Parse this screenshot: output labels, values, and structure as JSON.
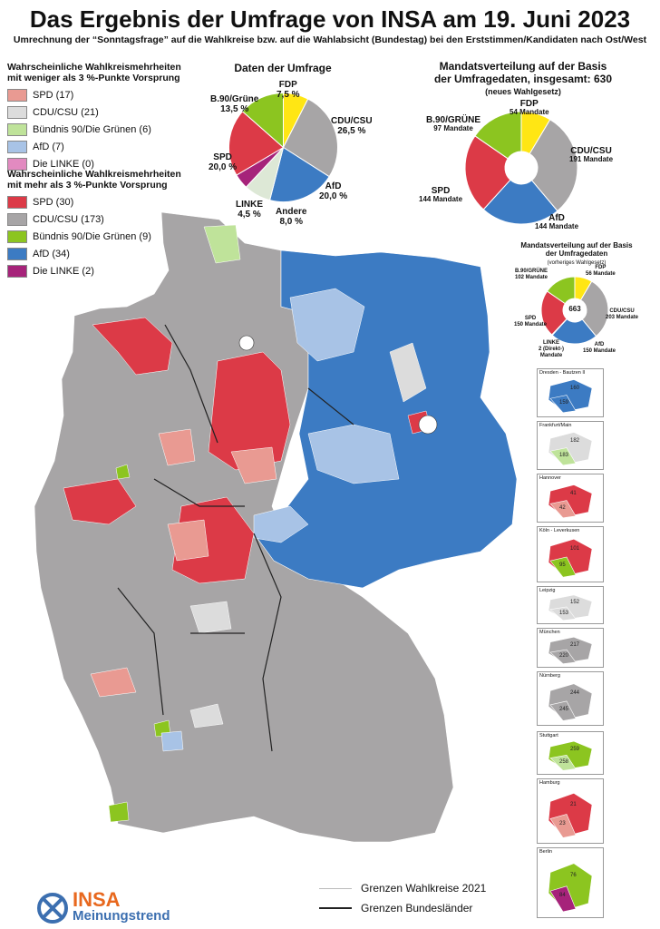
{
  "title": "Das Ergebnis der Umfrage von INSA am 19. Juni 2023",
  "subtitle": "Umrechnung der “Sonntagsfrage” auf die Wahlkreise bzw. auf die Wahlabsicht (Bundestag) bei den Erststimmen/Kandidaten nach Ost/West",
  "colors": {
    "spd": "#dc3a47",
    "spd_light": "#e99a92",
    "cdu": "#a7a5a6",
    "cdu_light": "#dcdcdc",
    "gruene": "#8cc520",
    "gruene_light": "#bfe39a",
    "afd": "#3c7bc3",
    "afd_light": "#a8c3e6",
    "linke": "#a6237a",
    "linke_light": "#e28ac0",
    "fdp": "#ffe614",
    "andere": "#dde8d6"
  },
  "legend": {
    "weak_heading": "Wahrscheinliche Wahlkreismehrheiten mit weniger als 3 %-Punkte Vorsprung",
    "weak": [
      {
        "label": "SPD (17)",
        "color": "#e99a92"
      },
      {
        "label": "CDU/CSU (21)",
        "color": "#dcdcdc"
      },
      {
        "label": "Bündnis 90/Die Grünen (6)",
        "color": "#bfe39a"
      },
      {
        "label": "AfD (7)",
        "color": "#a8c3e6"
      },
      {
        "label": "Die LINKE (0)",
        "color": "#e28ac0"
      }
    ],
    "strong_heading": "Wahrscheinliche Wahlkreismehrheiten mit mehr als 3 %-Punkte Vorsprung",
    "strong": [
      {
        "label": "SPD (30)",
        "color": "#dc3a47"
      },
      {
        "label": "CDU/CSU (173)",
        "color": "#a7a5a6"
      },
      {
        "label": "Bündnis 90/Die Grünen (9)",
        "color": "#8cc520"
      },
      {
        "label": "AfD (34)",
        "color": "#3c7bc3"
      },
      {
        "label": "Die LINKE (2)",
        "color": "#a6237a"
      }
    ]
  },
  "survey": {
    "title": "Daten der Umfrage",
    "slices": [
      {
        "party": "FDP",
        "value": 7.5,
        "value_label": "7,5 %",
        "color": "#ffe614"
      },
      {
        "party": "CDU/CSU",
        "value": 26.5,
        "value_label": "26,5 %",
        "color": "#a7a5a6"
      },
      {
        "party": "AfD",
        "value": 20.0,
        "value_label": "20,0 %",
        "color": "#3c7bc3"
      },
      {
        "party": "Andere",
        "value": 8.0,
        "value_label": "8,0 %",
        "color": "#dde8d6"
      },
      {
        "party": "LINKE",
        "value": 4.5,
        "value_label": "4,5 %",
        "color": "#a6237a"
      },
      {
        "party": "SPD",
        "value": 20.0,
        "value_label": "20,0 %",
        "color": "#dc3a47"
      },
      {
        "party": "B.90/Grüne",
        "value": 13.5,
        "value_label": "13,5 %",
        "color": "#8cc520"
      }
    ]
  },
  "seats_new": {
    "title_line1": "Mandatsverteilung auf der Basis",
    "title_line2": "der Umfragedaten, insgesamt: 630",
    "note": "(neues Wahlgesetz)",
    "slices": [
      {
        "party": "FDP",
        "value": 54,
        "label": "54 Mandate",
        "color": "#ffe614"
      },
      {
        "party": "CDU/CSU",
        "value": 191,
        "label": "191 Mandate",
        "color": "#a7a5a6"
      },
      {
        "party": "AfD",
        "value": 144,
        "label": "144 Mandate",
        "color": "#3c7bc3"
      },
      {
        "party": "SPD",
        "value": 144,
        "label": "144 Mandate",
        "color": "#dc3a47"
      },
      {
        "party": "B.90/GRÜNE",
        "value": 97,
        "label": "97 Mandate",
        "color": "#8cc520"
      }
    ]
  },
  "seats_old": {
    "title_line1": "Mandatsverteilung auf der Basis",
    "title_line2": "der Umfragedaten",
    "note": "(vorheriges Wahlgesetz)",
    "total": "663",
    "linke_label": "LINKE",
    "linke_note": "2 (Direkt-)",
    "linke_unit": "Mandate",
    "slices": [
      {
        "party": "FDP",
        "value": 56,
        "label": "56 Mandate",
        "color": "#ffe614"
      },
      {
        "party": "CDU/CSU",
        "value": 203,
        "label": "203 Mandate",
        "color": "#a7a5a6"
      },
      {
        "party": "AfD",
        "value": 150,
        "label": "150 Mandate",
        "color": "#3c7bc3"
      },
      {
        "party": "LINKE",
        "value": 2,
        "label": "2 Mandate",
        "color": "#a6237a"
      },
      {
        "party": "SPD",
        "value": 150,
        "label": "150 Mandate",
        "color": "#dc3a47"
      },
      {
        "party": "B.90/GRÜNE",
        "value": 102,
        "label": "102 Mandate",
        "color": "#8cc520"
      }
    ]
  },
  "insets": [
    {
      "name": "Dresden - Bautzen II",
      "n1": "160",
      "n2": "159"
    },
    {
      "name": "Frankfurt/Main",
      "n1": "182",
      "n2": "183"
    },
    {
      "name": "Hannover",
      "n1": "41",
      "n2": "42"
    },
    {
      "name": "Köln - Leverkusen",
      "n1": "101",
      "n2": "95"
    },
    {
      "name": "Leipzig",
      "n1": "152",
      "n2": "153"
    },
    {
      "name": "München",
      "n1": "217",
      "n2": "220"
    },
    {
      "name": "Nürnberg",
      "n1": "244",
      "n2": "245"
    },
    {
      "name": "Stuttgart",
      "n1": "259",
      "n2": "258"
    },
    {
      "name": "Hamburg",
      "n1": "21",
      "n2": "23"
    },
    {
      "name": "Berlin",
      "n1": "76",
      "n2": "84"
    }
  ],
  "footer_legend": {
    "line1": "Grenzen Wahlkreise 2021",
    "line2": "Grenzen Bundesländer"
  },
  "logo": {
    "brand": "INSA",
    "tagline": "Meinungstrend"
  }
}
